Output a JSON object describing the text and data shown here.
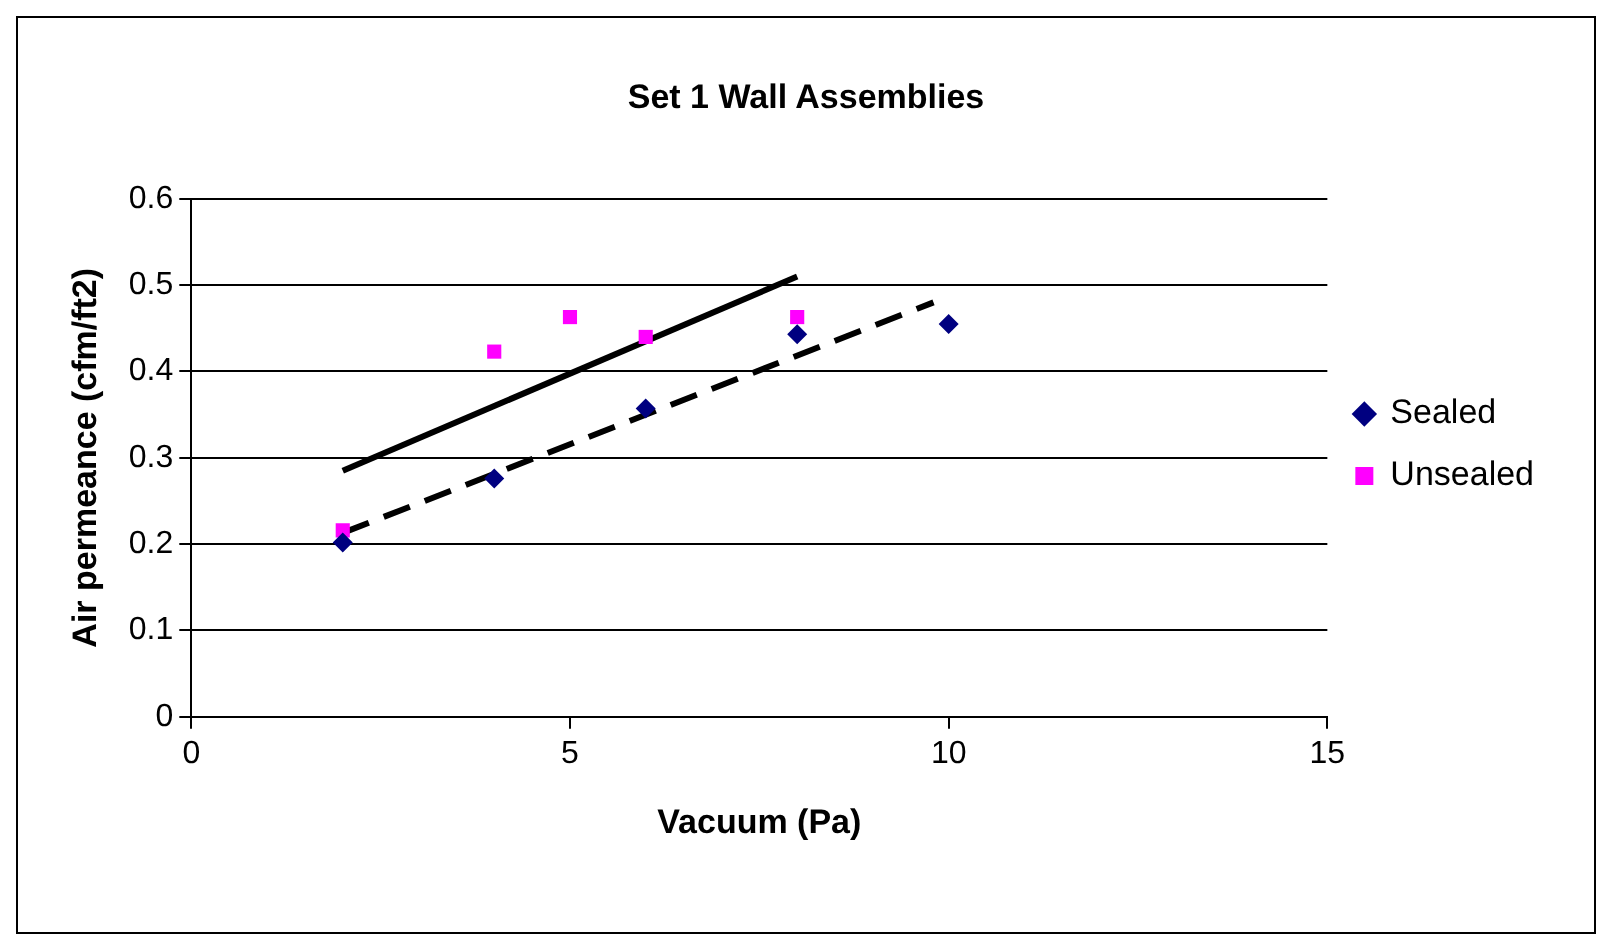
{
  "chart_data": {
    "type": "scatter",
    "title": "Set 1 Wall Assemblies",
    "xlabel": "Vacuum (Pa)",
    "ylabel": "Air permeance (cfm/ft2)",
    "series": [
      {
        "name": "Sealed",
        "color": "#000080",
        "marker": "diamond",
        "x": [
          2,
          4,
          6,
          8,
          10
        ],
        "values": [
          0.202,
          0.276,
          0.357,
          0.443,
          0.455
        ]
      },
      {
        "name": "Unsealed",
        "color": "#ff00ff",
        "marker": "square",
        "x": [
          2,
          4,
          5,
          6,
          8
        ],
        "values": [
          0.216,
          0.423,
          0.463,
          0.44,
          0.463
        ]
      },
      {
        "type": "line",
        "color": "#000000",
        "line_style": "solid",
        "marker": "none",
        "x": [
          2,
          8
        ],
        "values": [
          0.285,
          0.51
        ]
      },
      {
        "type": "line",
        "color": "#000000",
        "line_style": "dashed",
        "marker": "none",
        "x": [
          2,
          9.8
        ],
        "values": [
          0.213,
          0.48
        ]
      }
    ],
    "xlim": [
      0,
      15
    ],
    "xticks": [
      0,
      5,
      10,
      15
    ],
    "ylim": [
      0,
      0.6
    ],
    "yticks": [
      0,
      0.1,
      0.2,
      0.3,
      0.4,
      0.5,
      0.6
    ],
    "grid": "y",
    "legend": "right"
  }
}
